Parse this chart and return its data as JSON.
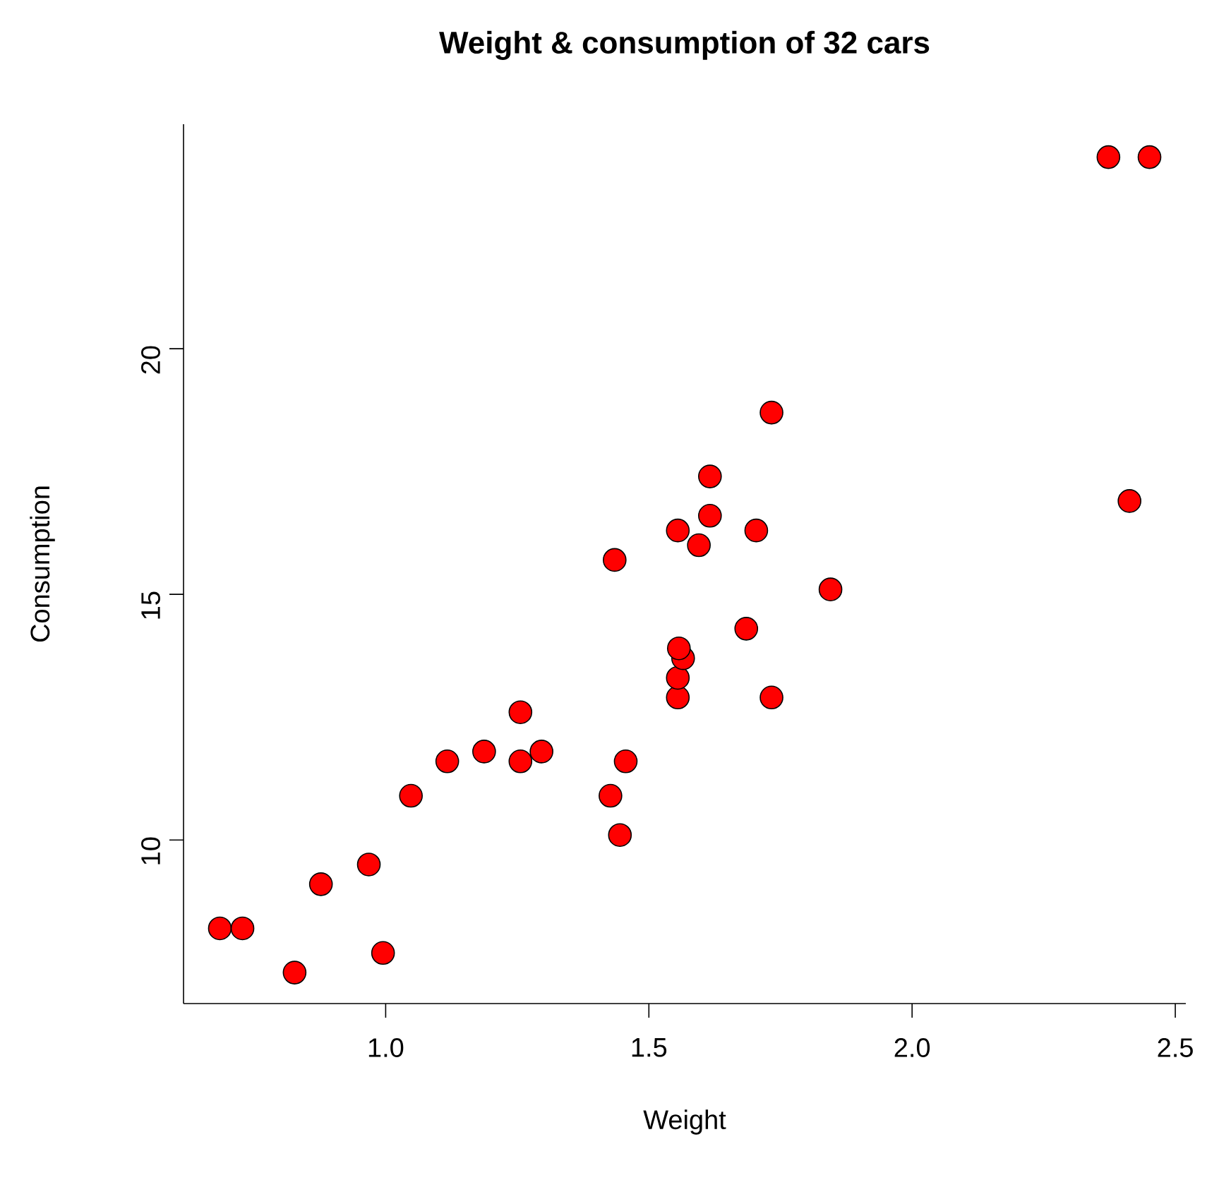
{
  "chart_data": {
    "type": "scatter",
    "title": "Weight & consumption of 32 cars",
    "xlabel": "Weight",
    "ylabel": "Consumption",
    "x": [
      0.685,
      0.728,
      0.827,
      0.877,
      0.968,
      0.995,
      1.048,
      1.117,
      1.187,
      1.256,
      1.256,
      1.296,
      1.427,
      1.445,
      1.456,
      1.435,
      1.555,
      1.555,
      1.565,
      1.557,
      1.555,
      1.595,
      1.616,
      1.616,
      1.685,
      1.704,
      1.733,
      1.733,
      1.845,
      2.413,
      2.373,
      2.451
    ],
    "values": [
      8.2,
      8.2,
      7.3,
      9.1,
      9.5,
      7.7,
      10.9,
      11.6,
      11.8,
      12.6,
      11.6,
      11.8,
      10.9,
      10.1,
      11.6,
      15.7,
      12.9,
      13.3,
      13.7,
      13.9,
      16.3,
      16.0,
      16.6,
      17.4,
      14.3,
      16.3,
      12.9,
      18.7,
      15.1,
      16.9,
      23.9,
      23.9
    ],
    "color": "#ff0000",
    "marker": "circle",
    "xlim": [
      0.616,
      2.52
    ],
    "ylim": [
      6.67,
      24.57
    ],
    "xticks": [
      {
        "value": 1,
        "label": "1.0"
      },
      {
        "value": 1.5,
        "label": "1.5"
      },
      {
        "value": 2,
        "label": "2.0"
      },
      {
        "value": 2.5,
        "label": "2.5"
      }
    ],
    "yticks": [
      10,
      15,
      20
    ]
  }
}
